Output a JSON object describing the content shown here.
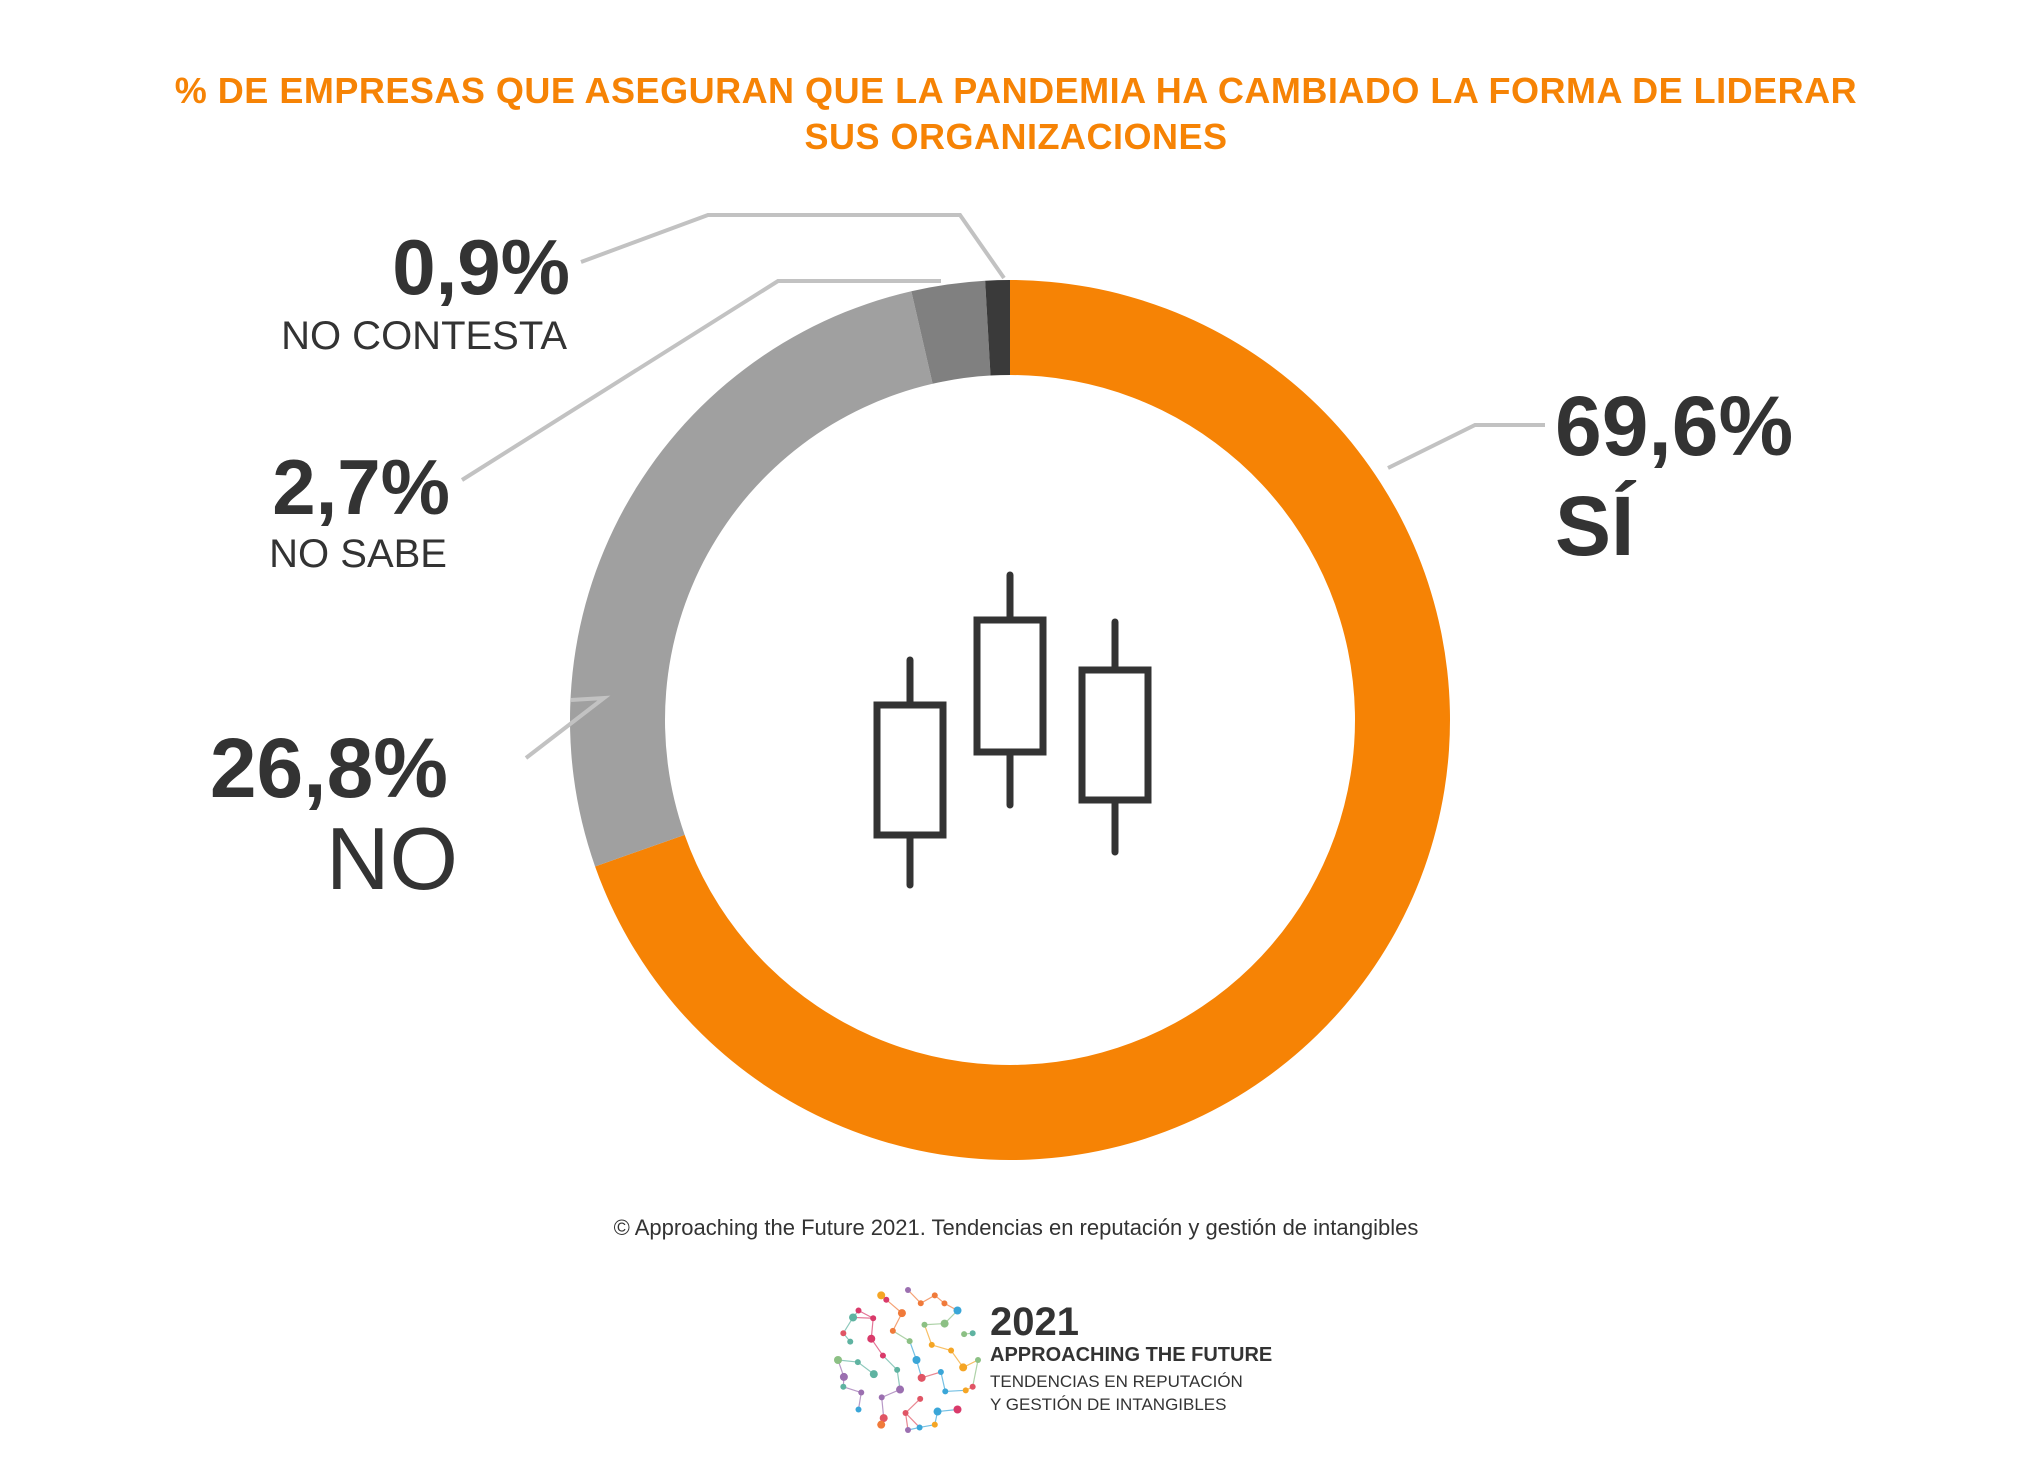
{
  "title": {
    "line1": "% DE EMPRESAS QUE ASEGURAN QUE LA PANDEMIA HA CAMBIADO LA FORMA DE LIDERAR",
    "line2": "SUS ORGANIZACIONES"
  },
  "chart_data": {
    "type": "pie",
    "variant": "donut",
    "title": "% DE EMPRESAS QUE ASEGURAN QUE LA PANDEMIA HA CAMBIADO LA FORMA DE LIDERAR SUS ORGANIZACIONES",
    "slices": [
      {
        "label": "SÍ",
        "value": 69.6,
        "value_label": "69,6%",
        "color": "#f68305"
      },
      {
        "label": "NO",
        "value": 26.8,
        "value_label": "26,8%",
        "color": "#a0a0a0"
      },
      {
        "label": "NO SABE",
        "value": 2.7,
        "value_label": "2,7%",
        "color": "#808080"
      },
      {
        "label": "NO CONTESTA",
        "value": 0.9,
        "value_label": "0,9%",
        "color": "#3a3a3a"
      }
    ],
    "center_icon": "candlestick-chart-icon"
  },
  "footer": "© Approaching the Future 2021. Tendencias en reputación y gestión de intangibles",
  "logo": {
    "icon": "network-globe-icon",
    "year": "2021",
    "name": "APPROACHING THE FUTURE",
    "sub1": "TENDENCIAS EN REPUTACIÓN",
    "sub2": "Y GESTIÓN DE INTANGIBLES"
  }
}
